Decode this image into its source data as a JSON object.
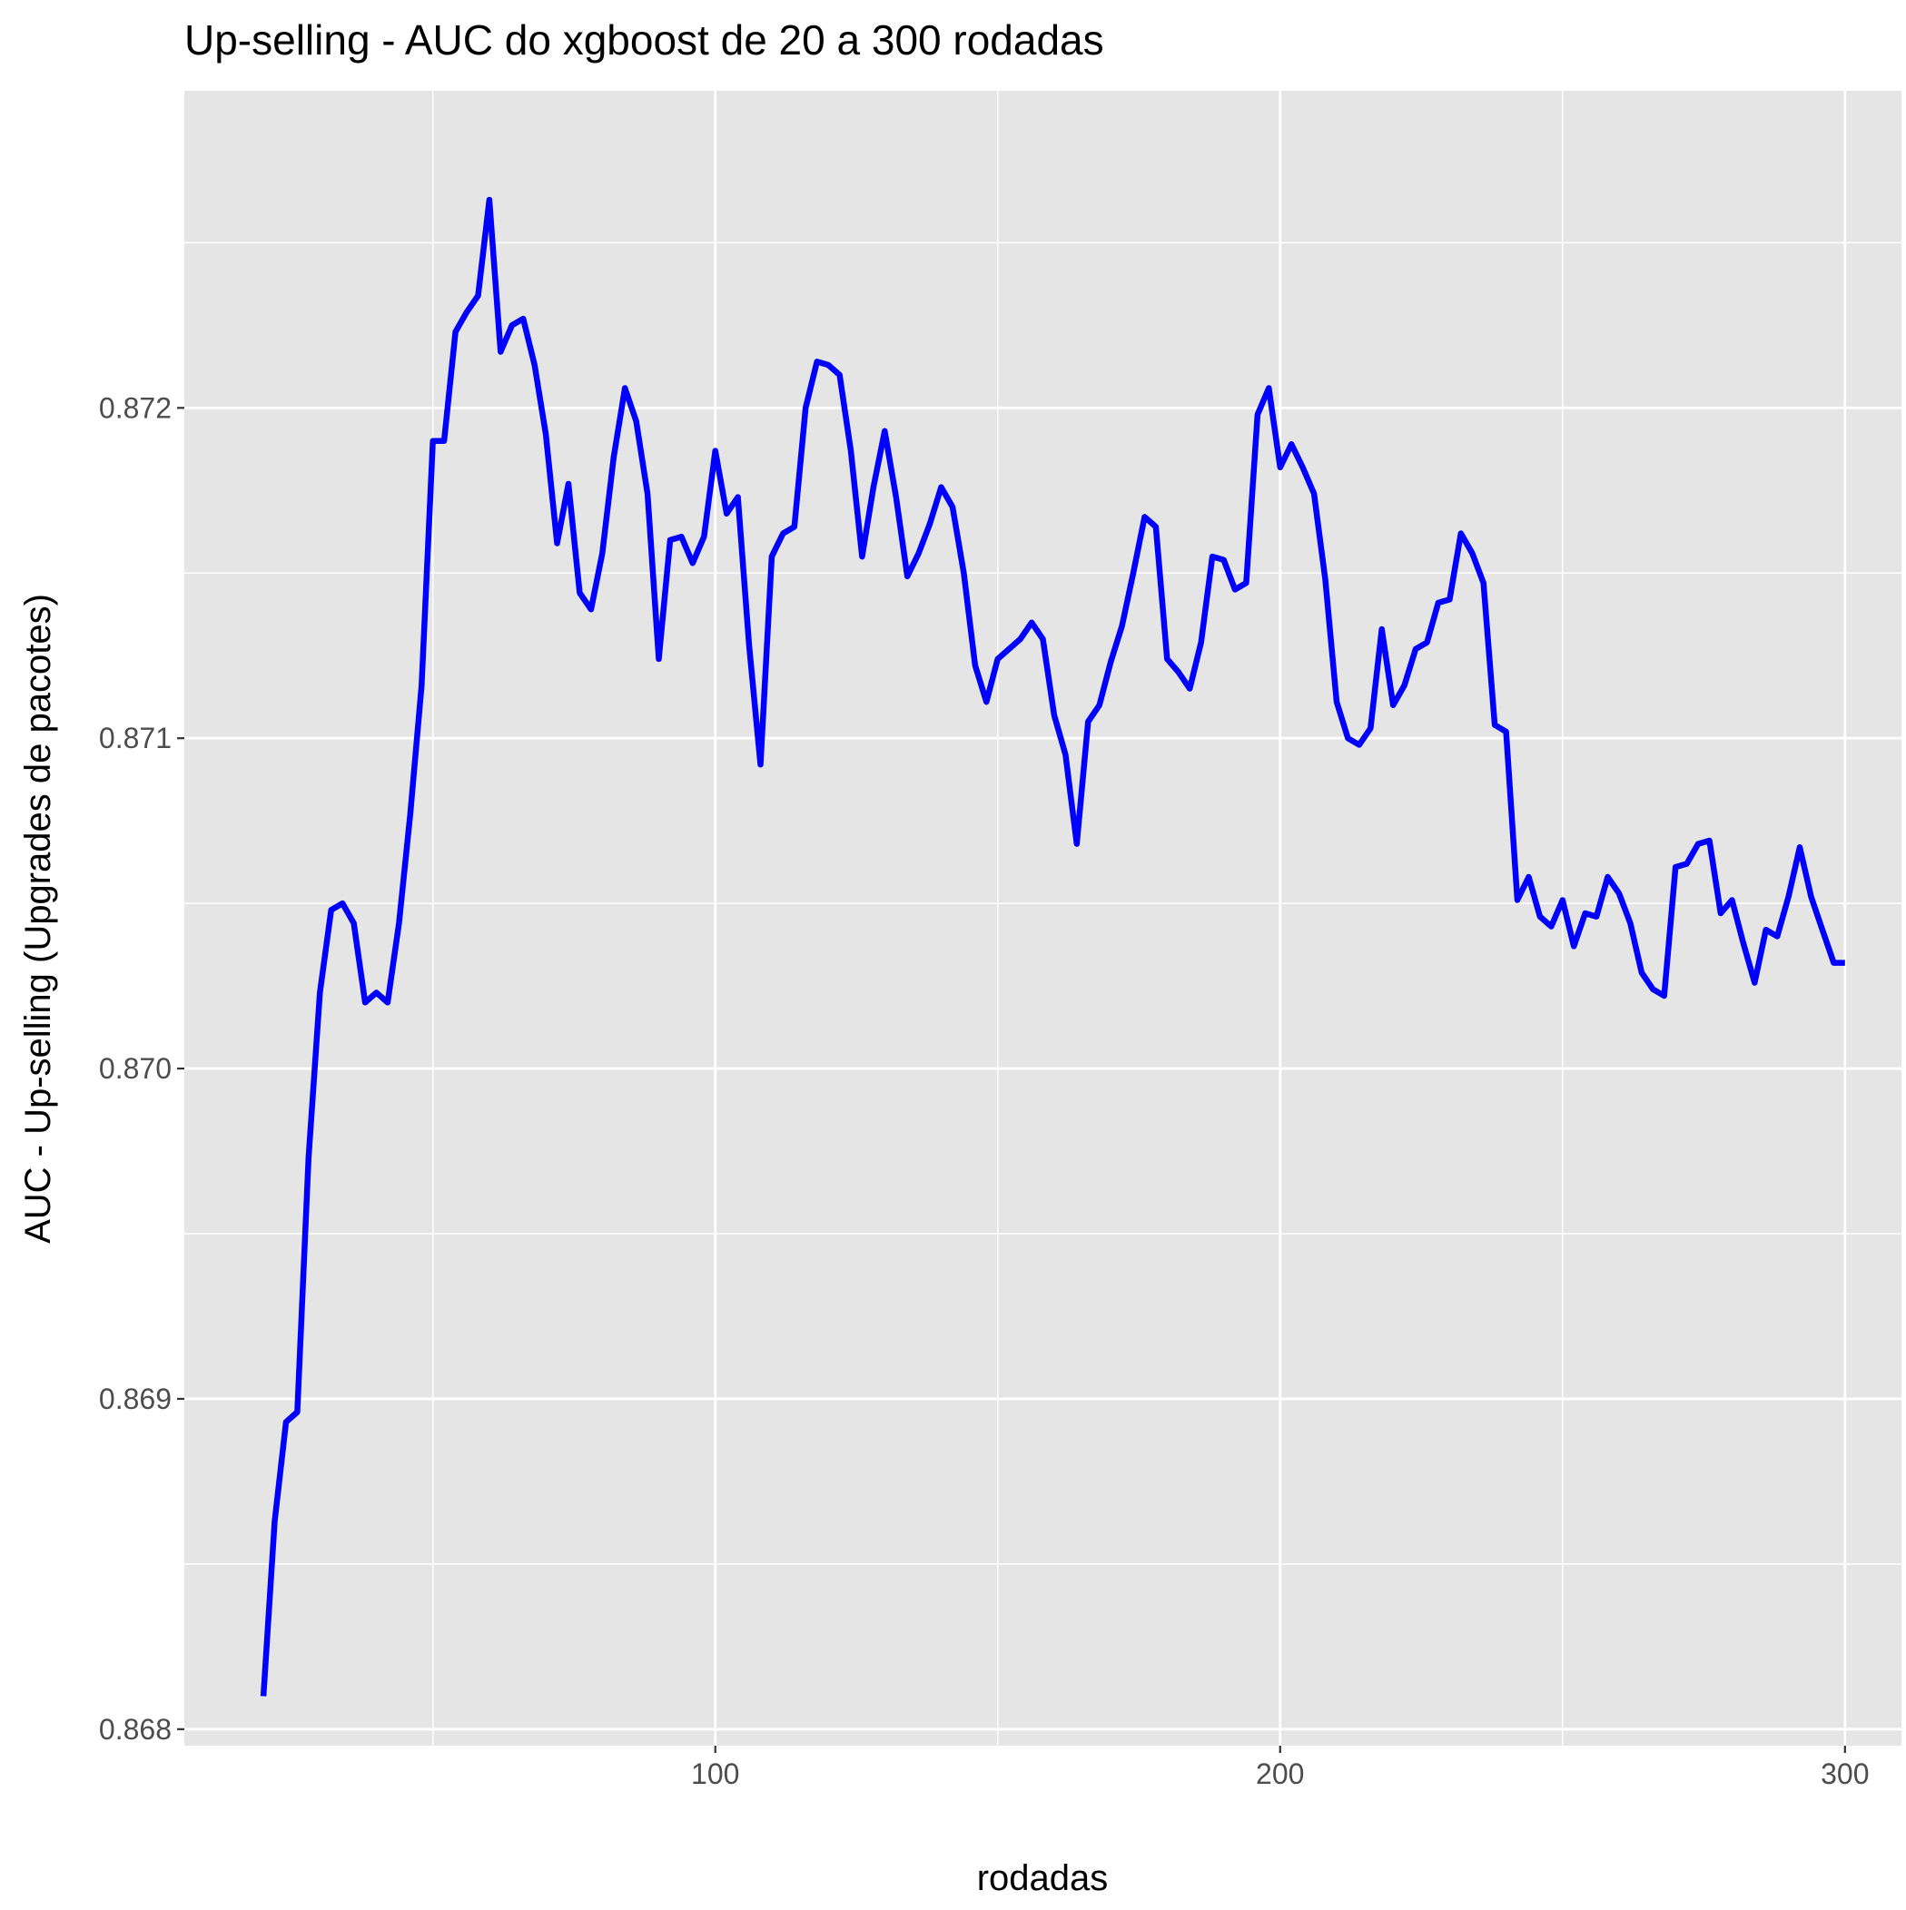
{
  "chart_data": {
    "type": "line",
    "title": "Up-selling - AUC do xgboost de 20 a 300 rodadas",
    "xlabel": "rodadas",
    "ylabel": "AUC - Up-selling (Upgrades de pacotes)",
    "xlim": [
      6,
      310
    ],
    "ylim": [
      0.86795,
      0.87296
    ],
    "x_ticks": [
      100,
      200,
      300
    ],
    "x_tick_labels": [
      "100",
      "200",
      "300"
    ],
    "y_ticks": [
      0.868,
      0.869,
      0.87,
      0.871,
      0.872
    ],
    "y_tick_labels": [
      "0.868",
      "0.869",
      "0.870",
      "0.871",
      "0.872"
    ],
    "grid": true,
    "panel_background": "#e5e5e5",
    "grid_color": "#ffffff",
    "line_color": "#0000ff",
    "series": [
      {
        "x": [
          20,
          22,
          24,
          26,
          28,
          30,
          32,
          34,
          36,
          38,
          40,
          42,
          44,
          46,
          48,
          50,
          52,
          54,
          56,
          58,
          60,
          62,
          64,
          66,
          68,
          70,
          72,
          74,
          76,
          78,
          80,
          82,
          84,
          86,
          88,
          90,
          92,
          94,
          96,
          98,
          100,
          102,
          104,
          106,
          108,
          110,
          112,
          114,
          116,
          118,
          120,
          122,
          124,
          126,
          128,
          130,
          132,
          134,
          136,
          138,
          140,
          142,
          144,
          146,
          148,
          150,
          152,
          154,
          156,
          158,
          160,
          162,
          164,
          166,
          168,
          170,
          172,
          174,
          176,
          178,
          180,
          182,
          184,
          186,
          188,
          190,
          192,
          194,
          196,
          198,
          200,
          202,
          204,
          206,
          208,
          210,
          212,
          214,
          216,
          218,
          220,
          222,
          224,
          226,
          228,
          230,
          232,
          234,
          236,
          238,
          240,
          242,
          244,
          246,
          248,
          250,
          252,
          254,
          256,
          258,
          260,
          262,
          264,
          266,
          268,
          270,
          272,
          274,
          276,
          278,
          280,
          282,
          284,
          286,
          288,
          290,
          292,
          294,
          296,
          298,
          300
        ],
        "y": [
          0.8681,
          0.86863,
          0.86893,
          0.86896,
          0.86973,
          0.87023,
          0.87048,
          0.8705,
          0.87044,
          0.8702,
          0.87023,
          0.8702,
          0.87044,
          0.87077,
          0.87116,
          0.8719,
          0.8719,
          0.87223,
          0.87229,
          0.87234,
          0.87263,
          0.87217,
          0.87225,
          0.87227,
          0.87213,
          0.87192,
          0.87159,
          0.87177,
          0.87144,
          0.87139,
          0.87156,
          0.87185,
          0.87206,
          0.87196,
          0.87174,
          0.87124,
          0.8716,
          0.87161,
          0.87153,
          0.87161,
          0.87187,
          0.87168,
          0.87173,
          0.87128,
          0.87092,
          0.87155,
          0.87162,
          0.87164,
          0.872,
          0.87214,
          0.87213,
          0.8721,
          0.87187,
          0.87155,
          0.87176,
          0.87193,
          0.87173,
          0.87149,
          0.87156,
          0.87165,
          0.87176,
          0.8717,
          0.8715,
          0.87122,
          0.87111,
          0.87124,
          0.87127,
          0.8713,
          0.87135,
          0.8713,
          0.87107,
          0.87095,
          0.87068,
          0.87105,
          0.8711,
          0.87123,
          0.87134,
          0.8715,
          0.87167,
          0.87164,
          0.87124,
          0.8712,
          0.87115,
          0.87129,
          0.87155,
          0.87154,
          0.87145,
          0.87147,
          0.87198,
          0.87206,
          0.87182,
          0.87189,
          0.87182,
          0.87174,
          0.87148,
          0.87111,
          0.871,
          0.87098,
          0.87103,
          0.87133,
          0.8711,
          0.87116,
          0.87127,
          0.87129,
          0.87141,
          0.87142,
          0.87162,
          0.87156,
          0.87147,
          0.87104,
          0.87102,
          0.87051,
          0.87058,
          0.87046,
          0.87043,
          0.87051,
          0.87037,
          0.87047,
          0.87046,
          0.87058,
          0.87053,
          0.87044,
          0.87029,
          0.87024,
          0.87022,
          0.87061,
          0.87062,
          0.87068,
          0.87069,
          0.87047,
          0.87051,
          0.87038,
          0.87026,
          0.87042,
          0.8704,
          0.87052,
          0.87067,
          0.87052,
          0.87042,
          0.87032,
          0.87032
        ]
      }
    ]
  }
}
